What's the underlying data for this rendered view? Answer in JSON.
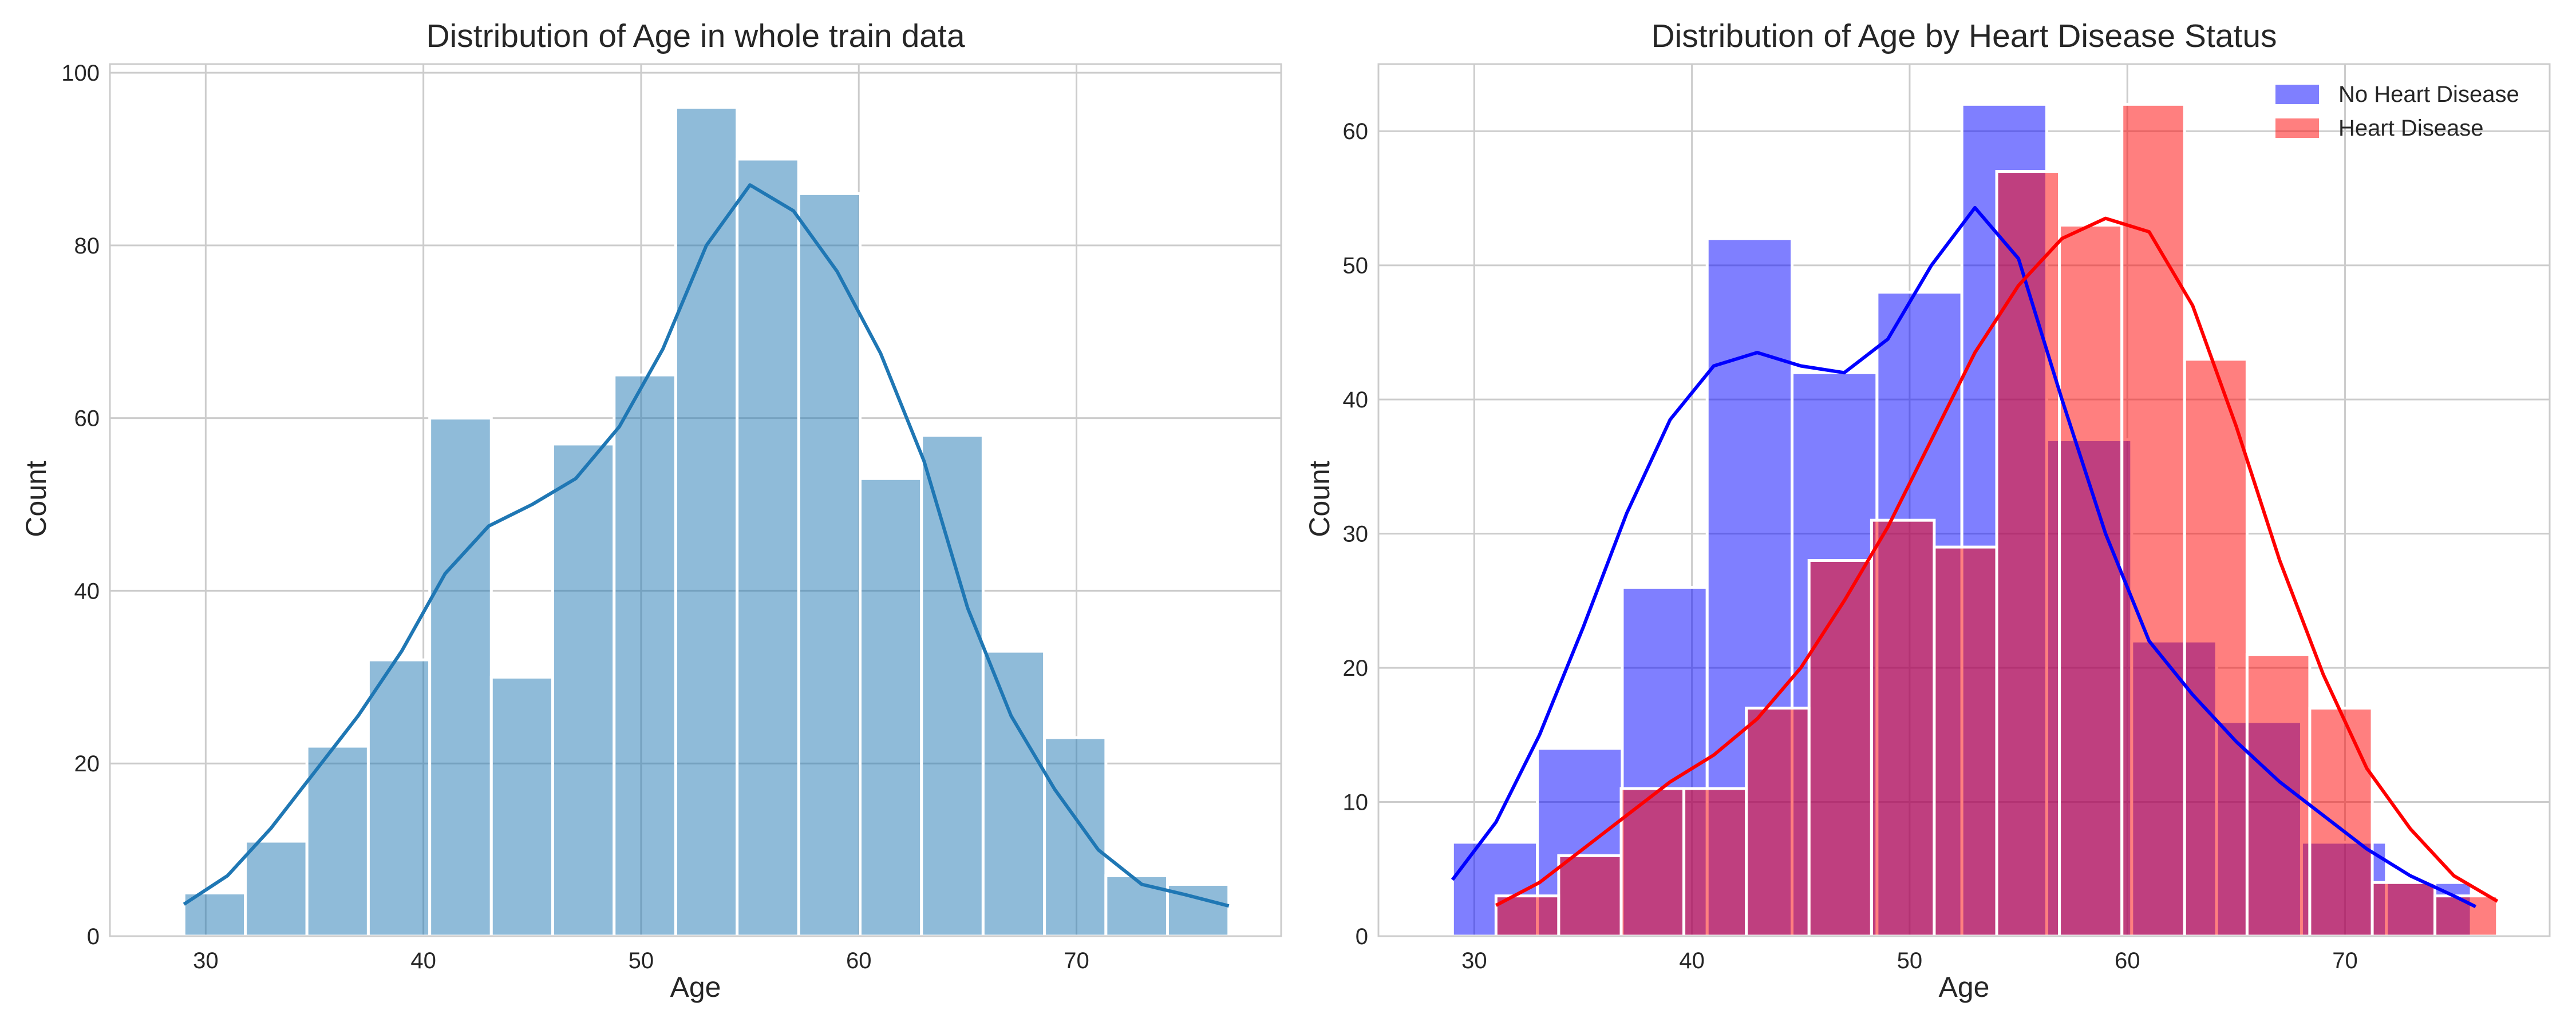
{
  "chart_data": [
    {
      "type": "bar",
      "title": "Distribution of Age in whole train data",
      "xlabel": "Age",
      "ylabel": "Count",
      "xlim": [
        25.6,
        79.4
      ],
      "ylim": [
        0,
        101
      ],
      "xticks": [
        30,
        40,
        50,
        60,
        70
      ],
      "yticks": [
        0,
        20,
        40,
        60,
        80,
        100
      ],
      "grid": true,
      "bin_edges": [
        29,
        31.82,
        34.65,
        37.47,
        40.29,
        43.12,
        45.94,
        48.76,
        51.59,
        54.41,
        57.24,
        60.06,
        62.88,
        65.71,
        68.53,
        71.35,
        74.18,
        77
      ],
      "series": [
        {
          "values": [
            5,
            11,
            22,
            32,
            60,
            30,
            57,
            65,
            96,
            90,
            86,
            53,
            58,
            33,
            23,
            7,
            6
          ],
          "color": "#1f77b4",
          "kde": [
            [
              29,
              3.7
            ],
            [
              31,
              7
            ],
            [
              33,
              12.5
            ],
            [
              35,
              19
            ],
            [
              37,
              25.5
            ],
            [
              39,
              33
            ],
            [
              41,
              42
            ],
            [
              43,
              47.5
            ],
            [
              45,
              50
            ],
            [
              47,
              53
            ],
            [
              49,
              59
            ],
            [
              51,
              68
            ],
            [
              53,
              80
            ],
            [
              55,
              87
            ],
            [
              57,
              84
            ],
            [
              59,
              77
            ],
            [
              61,
              67.5
            ],
            [
              63,
              55
            ],
            [
              65,
              38
            ],
            [
              67,
              25.5
            ],
            [
              69,
              17
            ],
            [
              71,
              10
            ],
            [
              73,
              6
            ],
            [
              75,
              4.8
            ],
            [
              77,
              3.5
            ]
          ]
        }
      ]
    },
    {
      "type": "bar",
      "title": "Distribution of Age by Heart Disease Status",
      "xlabel": "Age",
      "ylabel": "Count",
      "xlim": [
        25.6,
        79.4
      ],
      "ylim": [
        0,
        65
      ],
      "xticks": [
        30,
        40,
        50,
        60,
        70
      ],
      "yticks": [
        0,
        10,
        20,
        30,
        40,
        50,
        60
      ],
      "grid": true,
      "legend": "top-right",
      "series": [
        {
          "name": "No Heart Disease",
          "color": "#0000ff",
          "bin_edges": [
            29,
            32.9,
            36.8,
            40.7,
            44.6,
            48.5,
            52.4,
            56.3,
            60.2,
            64.1,
            68,
            71.9,
            75.8
          ],
          "values": [
            7,
            14,
            26,
            52,
            42,
            48,
            62,
            37,
            22,
            16,
            7,
            4
          ],
          "kde": [
            [
              29,
              4.2
            ],
            [
              31,
              8.5
            ],
            [
              33,
              15
            ],
            [
              35,
              23
            ],
            [
              37,
              31.5
            ],
            [
              39,
              38.5
            ],
            [
              41,
              42.5
            ],
            [
              43,
              43.5
            ],
            [
              45,
              42.5
            ],
            [
              47,
              42
            ],
            [
              49,
              44.5
            ],
            [
              51,
              50
            ],
            [
              53,
              54.3
            ],
            [
              55,
              50.5
            ],
            [
              57,
              40
            ],
            [
              59,
              30
            ],
            [
              61,
              22
            ],
            [
              63,
              18
            ],
            [
              65,
              14.5
            ],
            [
              67,
              11.5
            ],
            [
              69,
              9
            ],
            [
              71,
              6.5
            ],
            [
              73,
              4.5
            ],
            [
              75,
              3
            ],
            [
              76,
              2.2
            ]
          ]
        },
        {
          "name": "Heart Disease",
          "color": "#ff0000",
          "bin_edges": [
            31,
            33.88,
            36.75,
            39.63,
            42.5,
            45.38,
            48.25,
            51.13,
            54,
            56.88,
            59.75,
            62.63,
            65.5,
            68.38,
            71.25,
            74.13,
            77
          ],
          "values": [
            3,
            6,
            11,
            11,
            17,
            28,
            31,
            29,
            57,
            53,
            62,
            43,
            21,
            17,
            4,
            3
          ],
          "kde": [
            [
              31,
              2.3
            ],
            [
              33,
              4
            ],
            [
              35,
              6.5
            ],
            [
              37,
              9
            ],
            [
              39,
              11.5
            ],
            [
              41,
              13.5
            ],
            [
              43,
              16.2
            ],
            [
              45,
              20
            ],
            [
              47,
              25
            ],
            [
              49,
              30.5
            ],
            [
              51,
              37
            ],
            [
              53,
              43.5
            ],
            [
              55,
              48.5
            ],
            [
              57,
              52
            ],
            [
              59,
              53.5
            ],
            [
              61,
              52.5
            ],
            [
              63,
              47
            ],
            [
              65,
              38
            ],
            [
              67,
              28
            ],
            [
              69,
              19.5
            ],
            [
              71,
              12.5
            ],
            [
              73,
              8
            ],
            [
              75,
              4.5
            ],
            [
              77,
              2.6
            ]
          ]
        }
      ]
    }
  ]
}
